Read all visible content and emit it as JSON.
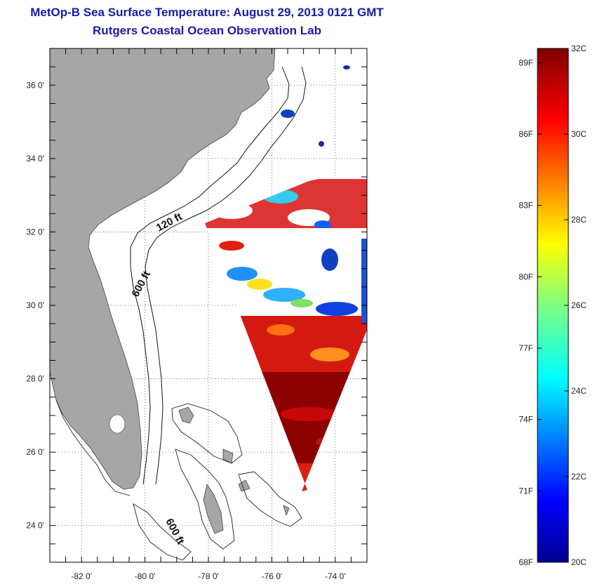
{
  "title": "MetOp-B Sea Surface Temperature:  August 29, 2013 0121 GMT",
  "subtitle": "Rutgers Coastal Ocean Observation Lab",
  "map": {
    "lat_ticks": [
      "36 0'",
      "34 0'",
      "32 0'",
      "30 0'",
      "28 0'",
      "26 0'",
      "24 0'"
    ],
    "lon_ticks": [
      "-82 0'",
      "-80 0'",
      "-78 0'",
      "-76 0'",
      "-74 0'"
    ],
    "lat_range": [
      23.0,
      37.0
    ],
    "lon_range": [
      -83.0,
      -73.0
    ],
    "grid": "dotted",
    "contour_labels": [
      "120 ft",
      "600 ft",
      "600 ft"
    ],
    "land_color": "#a6a6a6"
  },
  "colorbar": {
    "fahrenheit_labels": [
      "89F",
      "86F",
      "83F",
      "80F",
      "77F",
      "74F",
      "71F",
      "68F"
    ],
    "celsius_labels": [
      "32C",
      "30C",
      "28C",
      "26C",
      "24C",
      "22C",
      "20C"
    ],
    "range_c": [
      20,
      32
    ]
  }
}
